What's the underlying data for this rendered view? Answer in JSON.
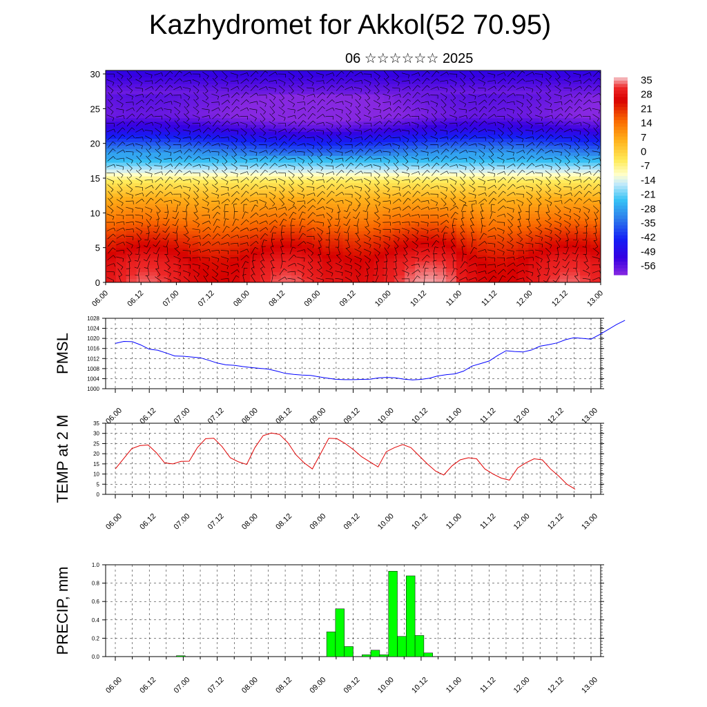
{
  "page": {
    "title": "Kazhydromet for Akkol(52 70.95)",
    "date_label": "06 ☆☆☆☆☆☆ 2025"
  },
  "chart_data": [
    {
      "type": "heatmap",
      "name": "upper-air-temperature-cross-section",
      "x_tick_labels": [
        "06.00",
        "06.12",
        "07.00",
        "07.12",
        "08.00",
        "08.12",
        "09.00",
        "09.12",
        "10.00",
        "10.12",
        "11.00",
        "11.12",
        "12.00",
        "12.12",
        "13.00"
      ],
      "y_tick_labels": [
        "0",
        "5",
        "10",
        "15",
        "20",
        "25",
        "30"
      ],
      "ylim": [
        0,
        30.5
      ],
      "colorbar_labels": [
        "35",
        "28",
        "21",
        "14",
        "7",
        "0",
        "-7",
        "-14",
        "-21",
        "-28",
        "-35",
        "-42",
        "-49",
        "-56"
      ],
      "temperature_profile_by_height": [
        {
          "h": 0,
          "t": 28
        },
        {
          "h": 3,
          "t": 26
        },
        {
          "h": 6,
          "t": 20
        },
        {
          "h": 9,
          "t": 12
        },
        {
          "h": 12,
          "t": 5
        },
        {
          "h": 14.5,
          "t": -5
        },
        {
          "h": 16,
          "t": -15
        },
        {
          "h": 18,
          "t": -28
        },
        {
          "h": 20,
          "t": -40
        },
        {
          "h": 22,
          "t": -52
        },
        {
          "h": 24,
          "t": -60
        },
        {
          "h": 27,
          "t": -58
        },
        {
          "h": 30.5,
          "t": -50
        }
      ],
      "overlay": "wind-barbs"
    },
    {
      "type": "line",
      "name": "pmsl",
      "ylabel": "PMSL",
      "ylim": [
        1000,
        1028
      ],
      "y_tick_labels": [
        "1000",
        "1004",
        "1008",
        "1012",
        "1016",
        "1020",
        "1024",
        "1028"
      ],
      "x_tick_labels": [
        "06.00",
        "06.12",
        "07.00",
        "07.12",
        "08.00",
        "08.12",
        "09.00",
        "09.12",
        "10.00",
        "10.12",
        "11.00",
        "11.12",
        "12.00",
        "12.12",
        "13.00"
      ],
      "color": "#0000ff",
      "x": [
        0,
        3,
        6,
        9,
        12,
        15,
        18,
        21,
        24,
        27,
        30,
        33,
        36,
        39,
        42,
        45,
        48,
        51,
        54,
        57,
        60,
        63,
        66,
        69,
        72,
        75,
        78,
        81,
        84,
        87,
        90,
        93,
        96,
        99,
        102,
        105,
        108,
        111,
        114,
        117,
        120,
        123,
        126,
        129,
        132,
        135,
        138,
        141,
        144,
        147,
        150,
        153,
        156,
        159,
        162,
        165,
        168
      ],
      "values": [
        1018,
        1018.8,
        1018.7,
        1017.4,
        1015.7,
        1015.3,
        1014.2,
        1013,
        1012.9,
        1012.6,
        1012.3,
        1011.3,
        1010.2,
        1009.5,
        1009.3,
        1008.8,
        1008.4,
        1008.1,
        1007.8,
        1007,
        1006.1,
        1005.7,
        1005.4,
        1005.3,
        1004.7,
        1004.2,
        1003.7,
        1003.6,
        1003.6,
        1003.7,
        1003.8,
        1004.3,
        1004.5,
        1004.3,
        1003.8,
        1003.5,
        1003.7,
        1004.2,
        1005.1,
        1005.6,
        1005.9,
        1007,
        1009,
        1010,
        1011,
        1013.2,
        1015.1,
        1014.8,
        1014.6,
        1015.4,
        1016.9,
        1017.5,
        1018.2,
        1019.5,
        1020.3,
        1020,
        1019.7
      ]
    },
    {
      "type": "line",
      "name": "temp-2m",
      "ylabel": "TEMP at 2 M",
      "ylim": [
        0,
        35
      ],
      "y_tick_labels": [
        "0",
        "5",
        "10",
        "15",
        "20",
        "25",
        "30",
        "35"
      ],
      "x_tick_labels": [
        "06.00",
        "06.12",
        "07.00",
        "07.12",
        "08.00",
        "08.12",
        "09.00",
        "09.12",
        "10.00",
        "10.12",
        "11.00",
        "11.12",
        "12.00",
        "12.12",
        "13.00"
      ],
      "color": "#e00000",
      "x": [
        0,
        6,
        9,
        12,
        15,
        18,
        21,
        24,
        27,
        30,
        33,
        36,
        39,
        42,
        45,
        48,
        51,
        54,
        57,
        60,
        63,
        66,
        69,
        72,
        75,
        78,
        81,
        84,
        87,
        90,
        93,
        96,
        99,
        102,
        105,
        108,
        111,
        114,
        117,
        120,
        123,
        126,
        129,
        132,
        135,
        138,
        141,
        144,
        147,
        150,
        153,
        156,
        159,
        162,
        165,
        168
      ],
      "values": [
        12.5,
        22.5,
        24,
        24.3,
        20.5,
        15.5,
        15,
        16.2,
        16.3,
        23,
        27.4,
        27.6,
        23.5,
        18,
        16,
        14.7,
        23,
        28.9,
        30.2,
        29.5,
        25.5,
        19.5,
        15.5,
        12.5,
        20,
        27.6,
        27.4,
        25,
        22,
        18.5,
        16,
        13.5,
        21,
        23,
        24.5,
        23,
        19,
        15,
        11.5,
        9.5,
        14,
        17,
        18,
        17.5,
        12.5,
        10,
        8,
        7,
        13,
        15.5,
        17.5,
        17,
        12.5,
        9,
        5,
        2.5
      ]
    },
    {
      "type": "bar",
      "name": "precip",
      "ylabel": "PRECIP, mm",
      "ylim": [
        0,
        1.0
      ],
      "y_tick_labels": [
        "0.0",
        "0.2",
        "0.4",
        "0.6",
        "0.8",
        "1.0"
      ],
      "x_tick_labels": [
        "06.00",
        "06.12",
        "07.00",
        "07.12",
        "08.00",
        "08.12",
        "09.00",
        "09.12",
        "10.00",
        "10.12",
        "11.00",
        "11.12",
        "12.00",
        "12.12",
        "13.00"
      ],
      "color": "#00ff00",
      "bar_start_hours": [
        24,
        75,
        78,
        81,
        87,
        90,
        93,
        96,
        99,
        102,
        105,
        108
      ],
      "values": [
        0.01,
        0.27,
        0.52,
        0.11,
        0.02,
        0.07,
        0.02,
        0.93,
        0.22,
        0.88,
        0.23,
        0.04
      ]
    }
  ]
}
